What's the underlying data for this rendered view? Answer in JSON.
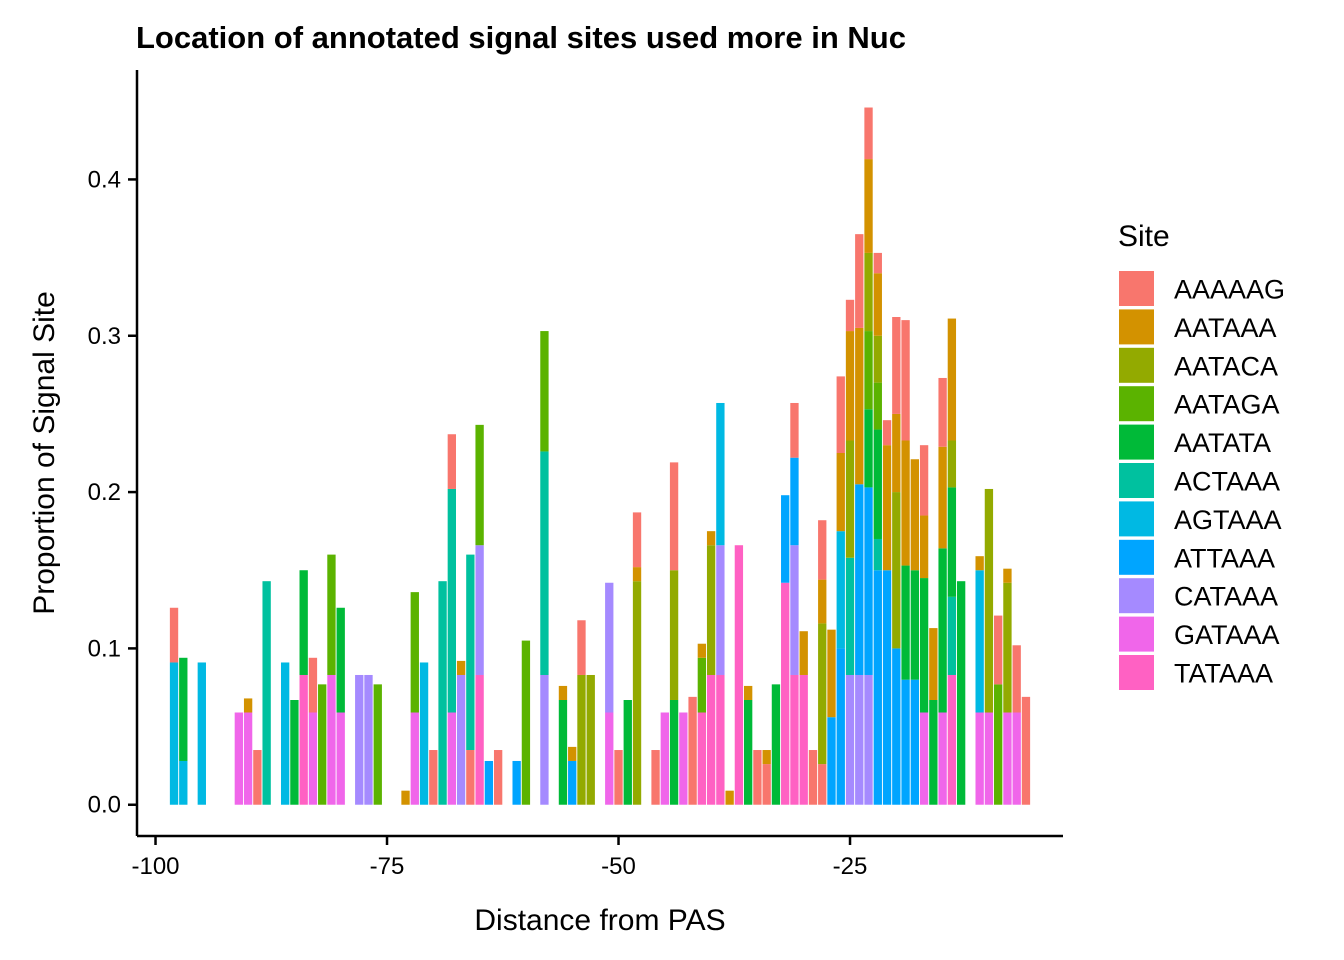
{
  "chart_data": {
    "type": "bar",
    "stacked": true,
    "title": "Location of annotated signal sites used more in Nuc",
    "xlabel": "Distance from PAS",
    "ylabel": "Proportion of Signal Site",
    "xlim": [
      -102,
      -2
    ],
    "ylim": [
      -0.02,
      0.47
    ],
    "x_ticks": [
      -100,
      -75,
      -50,
      -25
    ],
    "x_tick_labels": [
      "-100",
      "-75",
      "-50",
      "-25"
    ],
    "y_ticks": [
      0.0,
      0.1,
      0.2,
      0.3,
      0.4
    ],
    "y_tick_labels": [
      "0.0",
      "0.1",
      "0.2",
      "0.3",
      "0.4"
    ],
    "grid": false,
    "legend": {
      "title": "Site",
      "position": "right"
    },
    "series": [
      {
        "name": "AAAAAG",
        "color": "#F8766D"
      },
      {
        "name": "AATAAA",
        "color": "#D39200"
      },
      {
        "name": "AATACA",
        "color": "#93AA00"
      },
      {
        "name": "AATAGA",
        "color": "#5BB300"
      },
      {
        "name": "AATATA",
        "color": "#00BA38"
      },
      {
        "name": "ACTAAA",
        "color": "#00C19F"
      },
      {
        "name": "AGTAAA",
        "color": "#00B9E3"
      },
      {
        "name": "ATTAAA",
        "color": "#00A5FF"
      },
      {
        "name": "CATAAA",
        "color": "#A58AFF"
      },
      {
        "name": "GATAAA",
        "color": "#F066EA"
      },
      {
        "name": "TATAAA",
        "color": "#FF61C3"
      }
    ],
    "bars": [
      {
        "x": -98,
        "segments": [
          [
            "AGTAAA",
            0.091
          ],
          [
            "AAAAAG",
            0.035
          ]
        ]
      },
      {
        "x": -97,
        "segments": [
          [
            "AGTAAA",
            0.028
          ],
          [
            "AATATA",
            0.066
          ]
        ]
      },
      {
        "x": -95,
        "segments": [
          [
            "AGTAAA",
            0.091
          ]
        ]
      },
      {
        "x": -91,
        "segments": [
          [
            "GATAAA",
            0.059
          ]
        ]
      },
      {
        "x": -90,
        "segments": [
          [
            "GATAAA",
            0.059
          ],
          [
            "AATAAA",
            0.009
          ]
        ]
      },
      {
        "x": -89,
        "segments": [
          [
            "AAAAAG",
            0.035
          ]
        ]
      },
      {
        "x": -88,
        "segments": [
          [
            "ACTAAA",
            0.143
          ]
        ]
      },
      {
        "x": -86,
        "segments": [
          [
            "AGTAAA",
            0.091
          ]
        ]
      },
      {
        "x": -85,
        "segments": [
          [
            "AATATA",
            0.067
          ]
        ]
      },
      {
        "x": -84,
        "segments": [
          [
            "TATAAA",
            0.083
          ],
          [
            "AATATA",
            0.067
          ]
        ]
      },
      {
        "x": -83,
        "segments": [
          [
            "GATAAA",
            0.059
          ],
          [
            "AAAAAG",
            0.035
          ]
        ]
      },
      {
        "x": -82,
        "segments": [
          [
            "AATAGA",
            0.077
          ]
        ]
      },
      {
        "x": -81,
        "segments": [
          [
            "GATAAA",
            0.083
          ],
          [
            "AATAGA",
            0.077
          ]
        ]
      },
      {
        "x": -80,
        "segments": [
          [
            "GATAAA",
            0.059
          ],
          [
            "AATATA",
            0.067
          ]
        ]
      },
      {
        "x": -78,
        "segments": [
          [
            "CATAAA",
            0.083
          ]
        ]
      },
      {
        "x": -77,
        "segments": [
          [
            "CATAAA",
            0.083
          ]
        ]
      },
      {
        "x": -76,
        "segments": [
          [
            "AATAGA",
            0.077
          ]
        ]
      },
      {
        "x": -73,
        "segments": [
          [
            "AATAAA",
            0.009
          ]
        ]
      },
      {
        "x": -72,
        "segments": [
          [
            "GATAAA",
            0.059
          ],
          [
            "AATAGA",
            0.077
          ]
        ]
      },
      {
        "x": -71,
        "segments": [
          [
            "AGTAAA",
            0.091
          ]
        ]
      },
      {
        "x": -70,
        "segments": [
          [
            "AAAAAG",
            0.035
          ]
        ]
      },
      {
        "x": -69,
        "segments": [
          [
            "ACTAAA",
            0.143
          ]
        ]
      },
      {
        "x": -68,
        "segments": [
          [
            "GATAAA",
            0.059
          ],
          [
            "ACTAAA",
            0.143
          ],
          [
            "AAAAAG",
            0.035
          ]
        ]
      },
      {
        "x": -67,
        "segments": [
          [
            "CATAAA",
            0.083
          ],
          [
            "AATAAA",
            0.009
          ]
        ]
      },
      {
        "x": -66,
        "segments": [
          [
            "AAAAAG",
            0.035
          ],
          [
            "ACTAAA",
            0.125
          ]
        ]
      },
      {
        "x": -65,
        "segments": [
          [
            "TATAAA",
            0.083
          ],
          [
            "CATAAA",
            0.083
          ],
          [
            "AATAGA",
            0.077
          ]
        ]
      },
      {
        "x": -64,
        "segments": [
          [
            "ATTAAA",
            0.028
          ]
        ]
      },
      {
        "x": -63,
        "segments": [
          [
            "AAAAAG",
            0.035
          ]
        ]
      },
      {
        "x": -61,
        "segments": [
          [
            "ATTAAA",
            0.028
          ]
        ]
      },
      {
        "x": -60,
        "segments": [
          [
            "AATAGA",
            0.105
          ]
        ]
      },
      {
        "x": -58,
        "segments": [
          [
            "CATAAA",
            0.083
          ],
          [
            "ACTAAA",
            0.143
          ],
          [
            "AATAGA",
            0.077
          ]
        ]
      },
      {
        "x": -56,
        "segments": [
          [
            "AATATA",
            0.067
          ],
          [
            "AATAAA",
            0.009
          ]
        ]
      },
      {
        "x": -55,
        "segments": [
          [
            "ATTAAA",
            0.028
          ],
          [
            "AATAAA",
            0.009
          ]
        ]
      },
      {
        "x": -54,
        "segments": [
          [
            "AATACA",
            0.083
          ],
          [
            "AAAAAG",
            0.035
          ]
        ]
      },
      {
        "x": -53,
        "segments": [
          [
            "AATACA",
            0.083
          ]
        ]
      },
      {
        "x": -51,
        "segments": [
          [
            "GATAAA",
            0.059
          ],
          [
            "CATAAA",
            0.083
          ]
        ]
      },
      {
        "x": -50,
        "segments": [
          [
            "AAAAAG",
            0.035
          ]
        ]
      },
      {
        "x": -49,
        "segments": [
          [
            "AATATA",
            0.067
          ]
        ]
      },
      {
        "x": -48,
        "segments": [
          [
            "AATACA",
            0.143
          ],
          [
            "AATAAA",
            0.009
          ],
          [
            "AAAAAG",
            0.035
          ]
        ]
      },
      {
        "x": -46,
        "segments": [
          [
            "AAAAAG",
            0.035
          ]
        ]
      },
      {
        "x": -45,
        "segments": [
          [
            "GATAAA",
            0.059
          ]
        ]
      },
      {
        "x": -44,
        "segments": [
          [
            "AATATA",
            0.067
          ],
          [
            "AATACA",
            0.083
          ],
          [
            "AAAAAG",
            0.069
          ]
        ]
      },
      {
        "x": -43,
        "segments": [
          [
            "GATAAA",
            0.059
          ]
        ]
      },
      {
        "x": -42,
        "segments": [
          [
            "AAAAAG",
            0.069
          ]
        ]
      },
      {
        "x": -41,
        "segments": [
          [
            "TATAAA",
            0.059
          ],
          [
            "AATAGA",
            0.035
          ],
          [
            "AATAAA",
            0.009
          ]
        ]
      },
      {
        "x": -40,
        "segments": [
          [
            "TATAAA",
            0.083
          ],
          [
            "AATACA",
            0.083
          ],
          [
            "AATAAA",
            0.009
          ]
        ]
      },
      {
        "x": -39,
        "segments": [
          [
            "TATAAA",
            0.083
          ],
          [
            "CATAAA",
            0.083
          ],
          [
            "AGTAAA",
            0.091
          ]
        ]
      },
      {
        "x": -38,
        "segments": [
          [
            "AATAAA",
            0.009
          ]
        ]
      },
      {
        "x": -37,
        "segments": [
          [
            "TATAAA",
            0.166
          ]
        ]
      },
      {
        "x": -36,
        "segments": [
          [
            "AATATA",
            0.067
          ],
          [
            "AATAAA",
            0.009
          ]
        ]
      },
      {
        "x": -35,
        "segments": [
          [
            "AAAAAG",
            0.035
          ]
        ]
      },
      {
        "x": -34,
        "segments": [
          [
            "AAAAAG",
            0.026
          ],
          [
            "AATAAA",
            0.009
          ]
        ]
      },
      {
        "x": -33,
        "segments": [
          [
            "AATATA",
            0.077
          ]
        ]
      },
      {
        "x": -32,
        "segments": [
          [
            "TATAAA",
            0.142
          ],
          [
            "ATTAAA",
            0.056
          ]
        ]
      },
      {
        "x": -31,
        "segments": [
          [
            "TATAAA",
            0.083
          ],
          [
            "CATAAA",
            0.083
          ],
          [
            "ATTAAA",
            0.056
          ],
          [
            "AAAAAG",
            0.035
          ]
        ]
      },
      {
        "x": -30,
        "segments": [
          [
            "TATAAA",
            0.083
          ],
          [
            "AATAAA",
            0.028
          ]
        ]
      },
      {
        "x": -29,
        "segments": [
          [
            "AAAAAG",
            0.035
          ]
        ]
      },
      {
        "x": -28,
        "segments": [
          [
            "AAAAAG",
            0.026
          ],
          [
            "AATACA",
            0.09
          ],
          [
            "AATAAA",
            0.028
          ],
          [
            "AAAAAG",
            0.038
          ]
        ]
      },
      {
        "x": -27,
        "segments": [
          [
            "ATTAAA",
            0.056
          ],
          [
            "AATAAA",
            0.056
          ]
        ]
      },
      {
        "x": -26,
        "segments": [
          [
            "ATTAAA",
            0.1
          ],
          [
            "AGTAAA",
            0.075
          ],
          [
            "AATAAA",
            0.05
          ],
          [
            "AAAAAG",
            0.049
          ]
        ]
      },
      {
        "x": -25,
        "segments": [
          [
            "CATAAA",
            0.083
          ],
          [
            "ACTAAA",
            0.075
          ],
          [
            "AATACA",
            0.075
          ],
          [
            "AATAAA",
            0.07
          ],
          [
            "AAAAAG",
            0.02
          ]
        ]
      },
      {
        "x": -24,
        "segments": [
          [
            "CATAAA",
            0.083
          ],
          [
            "ATTAAA",
            0.122
          ],
          [
            "AATAAA",
            0.1
          ],
          [
            "AAAAAG",
            0.06
          ]
        ]
      },
      {
        "x": -23,
        "segments": [
          [
            "CATAAA",
            0.083
          ],
          [
            "ATTAAA",
            0.12
          ],
          [
            "AATATA",
            0.05
          ],
          [
            "AATAGA",
            0.05
          ],
          [
            "AATACA",
            0.05
          ],
          [
            "AATAAA",
            0.06
          ],
          [
            "AAAAAG",
            0.033
          ]
        ]
      },
      {
        "x": -22,
        "segments": [
          [
            "ATTAAA",
            0.15
          ],
          [
            "ACTAAA",
            0.02
          ],
          [
            "AATATA",
            0.07
          ],
          [
            "AATAGA",
            0.03
          ],
          [
            "AATACA",
            0.03
          ],
          [
            "AATAAA",
            0.04
          ],
          [
            "AAAAAG",
            0.013
          ]
        ]
      },
      {
        "x": -21,
        "segments": [
          [
            "ATTAAA",
            0.15
          ],
          [
            "AATAAA",
            0.08
          ],
          [
            "AAAAAG",
            0.016
          ]
        ]
      },
      {
        "x": -20,
        "segments": [
          [
            "ATTAAA",
            0.1
          ],
          [
            "AATACA",
            0.1
          ],
          [
            "AATAAA",
            0.05
          ],
          [
            "AAAAAG",
            0.062
          ]
        ]
      },
      {
        "x": -19,
        "segments": [
          [
            "ATTAAA",
            0.08
          ],
          [
            "AATATA",
            0.073
          ],
          [
            "AATAAA",
            0.08
          ],
          [
            "AAAAAG",
            0.077
          ]
        ]
      },
      {
        "x": -18,
        "segments": [
          [
            "ATTAAA",
            0.08
          ],
          [
            "AATATA",
            0.07
          ],
          [
            "AATAAA",
            0.071
          ]
        ]
      },
      {
        "x": -17,
        "segments": [
          [
            "GATAAA",
            0.059
          ],
          [
            "AATATA",
            0.086
          ],
          [
            "AATAAA",
            0.04
          ],
          [
            "AAAAAG",
            0.045
          ]
        ]
      },
      {
        "x": -16,
        "segments": [
          [
            "AATATA",
            0.067
          ],
          [
            "AATAAA",
            0.046
          ]
        ]
      },
      {
        "x": -15,
        "segments": [
          [
            "GATAAA",
            0.059
          ],
          [
            "AATATA",
            0.105
          ],
          [
            "AATAAA",
            0.065
          ],
          [
            "AAAAAG",
            0.044
          ]
        ]
      },
      {
        "x": -14,
        "segments": [
          [
            "TATAAA",
            0.083
          ],
          [
            "ACTAAA",
            0.05
          ],
          [
            "AATATA",
            0.07
          ],
          [
            "AATACA",
            0.03
          ],
          [
            "AATAAA",
            0.078
          ]
        ]
      },
      {
        "x": -13,
        "segments": [
          [
            "AATATA",
            0.067
          ],
          [
            "AATATA",
            0.076
          ]
        ]
      },
      {
        "x": -11,
        "segments": [
          [
            "GATAAA",
            0.059
          ],
          [
            "AGTAAA",
            0.091
          ],
          [
            "AATAAA",
            0.009
          ]
        ]
      },
      {
        "x": -10,
        "segments": [
          [
            "GATAAA",
            0.059
          ],
          [
            "AATACA",
            0.143
          ]
        ]
      },
      {
        "x": -9,
        "segments": [
          [
            "AATAGA",
            0.077
          ],
          [
            "AAAAAG",
            0.044
          ]
        ]
      },
      {
        "x": -8,
        "segments": [
          [
            "GATAAA",
            0.059
          ],
          [
            "AATACA",
            0.083
          ],
          [
            "AATAAA",
            0.009
          ]
        ]
      },
      {
        "x": -7,
        "segments": [
          [
            "GATAAA",
            0.059
          ],
          [
            "AAAAAG",
            0.043
          ]
        ]
      },
      {
        "x": -6,
        "segments": [
          [
            "AAAAAG",
            0.069
          ]
        ]
      }
    ]
  }
}
